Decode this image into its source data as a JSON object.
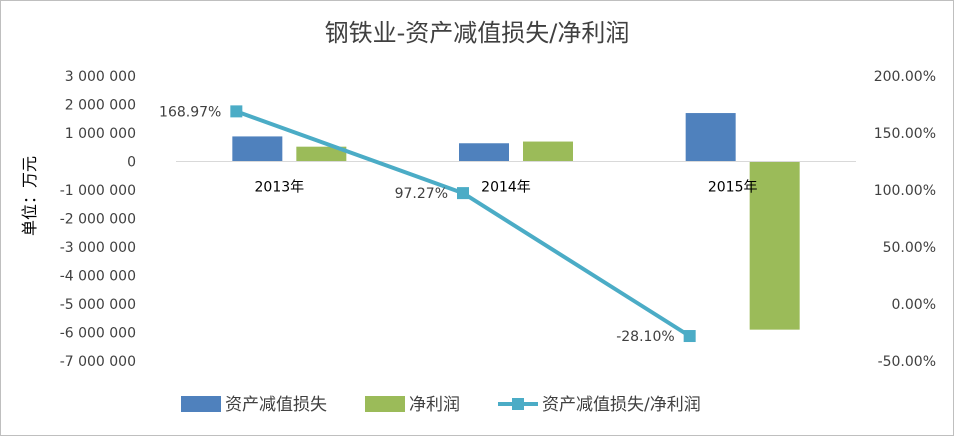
{
  "chart_data": {
    "type": "bar",
    "title": "钢铁业-资产减值损失/净利润",
    "ylabel": "单位：万元",
    "categories": [
      "2013年",
      "2014年",
      "2015年"
    ],
    "ylim": [
      -7000000,
      3000000
    ],
    "ylim_right": [
      -0.5,
      2.0
    ],
    "yticks": [
      "3 000 000",
      "2 000 000",
      "1 000 000",
      "0",
      "-1 000 000",
      "-2 000 000",
      "-3 000 000",
      "-4 000 000",
      "-5 000 000",
      "-6 000 000",
      "-7 000 000"
    ],
    "yticks_right": [
      "200.00%",
      "150.00%",
      "100.00%",
      "50.00%",
      "0.00%",
      "-50.00%"
    ],
    "series": [
      {
        "name": "资产减值损失",
        "type": "bar",
        "axis": "left",
        "color": "#4f81bd",
        "values": [
          880000,
          640000,
          1700000
        ]
      },
      {
        "name": "净利润",
        "type": "bar",
        "axis": "left",
        "color": "#9bbb59",
        "values": [
          520000,
          700000,
          -5900000
        ]
      },
      {
        "name": "资产减值损失/净利润",
        "type": "line",
        "axis": "right",
        "color": "#4bacc6",
        "values": [
          1.6897,
          0.9727,
          -0.281
        ],
        "labels": [
          "168.97%",
          "97.27%",
          "-28.10%"
        ]
      }
    ],
    "legend_position": "bottom",
    "grid": false
  }
}
